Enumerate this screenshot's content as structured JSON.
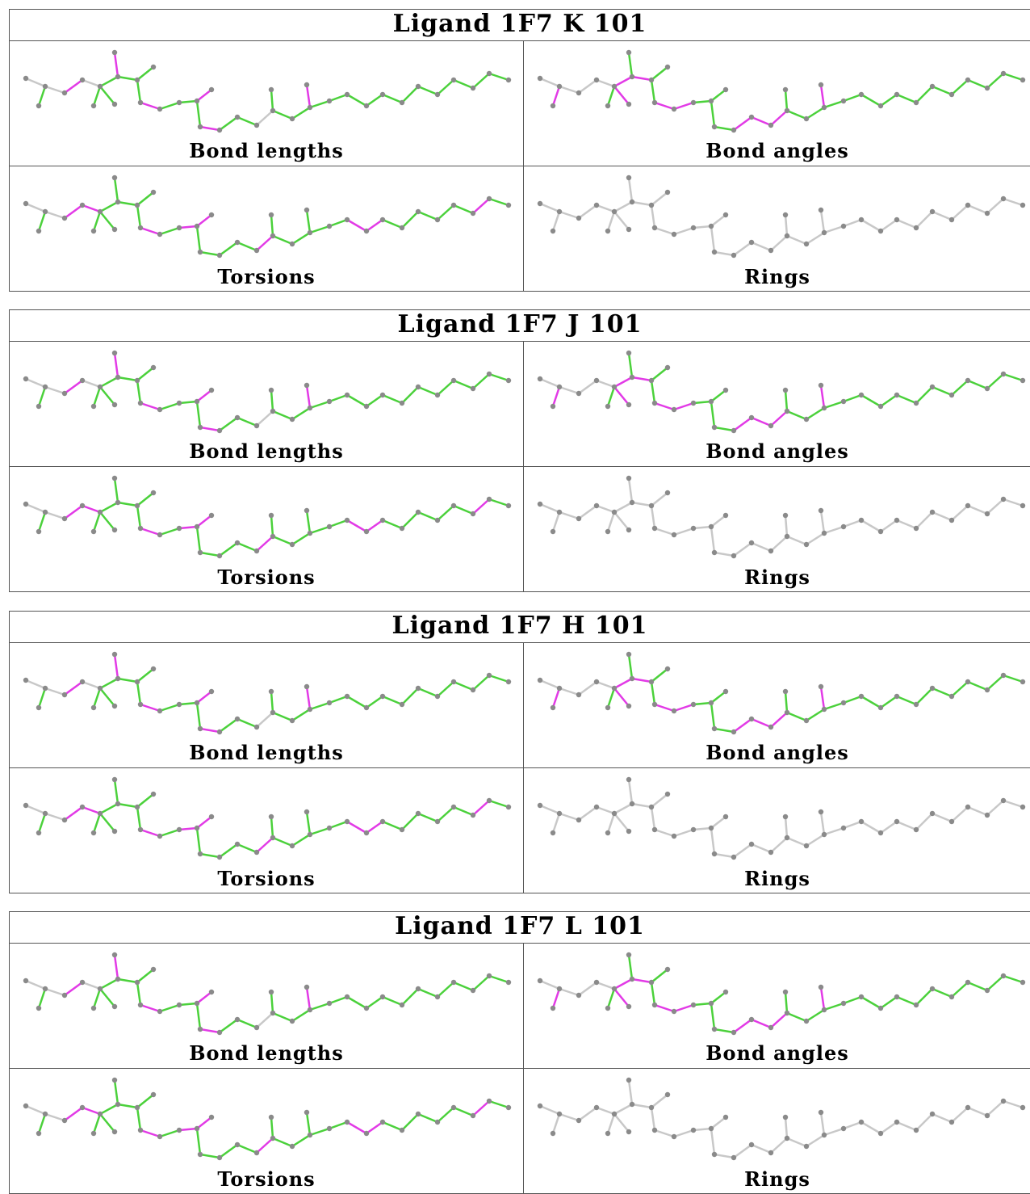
{
  "colors": {
    "outlier": "#e23ae6",
    "ok": "#4bd13b",
    "neutral": "#c8c8c8",
    "atom": "#8a8a8a"
  },
  "labels": {
    "bond_lengths": "Bond lengths",
    "bond_angles": "Bond angles",
    "torsions": "Torsions",
    "rings": "Rings"
  },
  "ligands": [
    {
      "title": "Ligand 1F7 K 101"
    },
    {
      "title": "Ligand 1F7 J 101"
    },
    {
      "title": "Ligand 1F7 H 101"
    },
    {
      "title": "Ligand 1F7 L 101"
    }
  ]
}
